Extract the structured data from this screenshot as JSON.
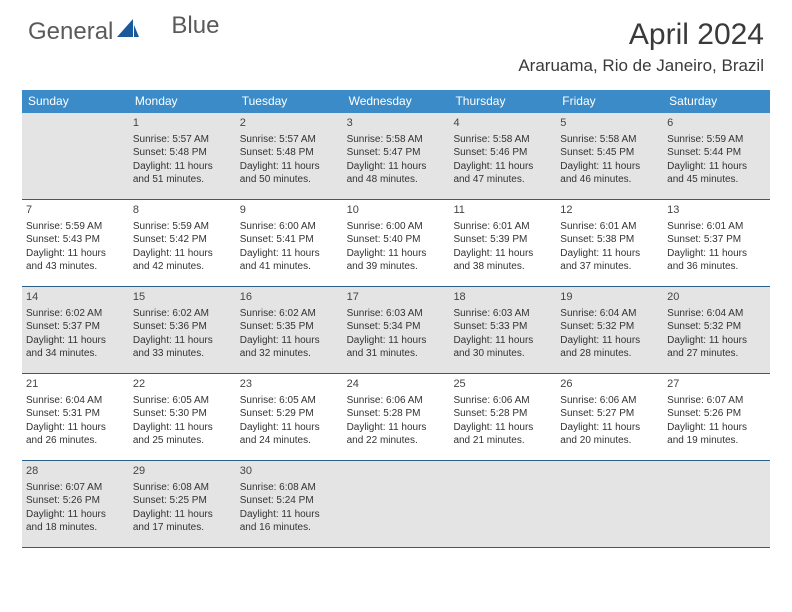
{
  "brand": {
    "part1": "General",
    "part2": "Blue"
  },
  "colors": {
    "header_bg": "#3b8bc8",
    "header_text": "#ffffff",
    "row_border": "#2b5f8a",
    "shaded_bg": "#e4e4e4",
    "text": "#333333",
    "logo_gray": "#5a5a5a",
    "logo_blue": "#1b5a9a"
  },
  "title": "April 2024",
  "location": "Araruama, Rio de Janeiro, Brazil",
  "day_names": [
    "Sunday",
    "Monday",
    "Tuesday",
    "Wednesday",
    "Thursday",
    "Friday",
    "Saturday"
  ],
  "weeks": [
    {
      "shaded": true,
      "cells": [
        {
          "num": "",
          "lines": []
        },
        {
          "num": "1",
          "lines": [
            "Sunrise: 5:57 AM",
            "Sunset: 5:48 PM",
            "Daylight: 11 hours",
            "and 51 minutes."
          ]
        },
        {
          "num": "2",
          "lines": [
            "Sunrise: 5:57 AM",
            "Sunset: 5:48 PM",
            "Daylight: 11 hours",
            "and 50 minutes."
          ]
        },
        {
          "num": "3",
          "lines": [
            "Sunrise: 5:58 AM",
            "Sunset: 5:47 PM",
            "Daylight: 11 hours",
            "and 48 minutes."
          ]
        },
        {
          "num": "4",
          "lines": [
            "Sunrise: 5:58 AM",
            "Sunset: 5:46 PM",
            "Daylight: 11 hours",
            "and 47 minutes."
          ]
        },
        {
          "num": "5",
          "lines": [
            "Sunrise: 5:58 AM",
            "Sunset: 5:45 PM",
            "Daylight: 11 hours",
            "and 46 minutes."
          ]
        },
        {
          "num": "6",
          "lines": [
            "Sunrise: 5:59 AM",
            "Sunset: 5:44 PM",
            "Daylight: 11 hours",
            "and 45 minutes."
          ]
        }
      ]
    },
    {
      "shaded": false,
      "cells": [
        {
          "num": "7",
          "lines": [
            "Sunrise: 5:59 AM",
            "Sunset: 5:43 PM",
            "Daylight: 11 hours",
            "and 43 minutes."
          ]
        },
        {
          "num": "8",
          "lines": [
            "Sunrise: 5:59 AM",
            "Sunset: 5:42 PM",
            "Daylight: 11 hours",
            "and 42 minutes."
          ]
        },
        {
          "num": "9",
          "lines": [
            "Sunrise: 6:00 AM",
            "Sunset: 5:41 PM",
            "Daylight: 11 hours",
            "and 41 minutes."
          ]
        },
        {
          "num": "10",
          "lines": [
            "Sunrise: 6:00 AM",
            "Sunset: 5:40 PM",
            "Daylight: 11 hours",
            "and 39 minutes."
          ]
        },
        {
          "num": "11",
          "lines": [
            "Sunrise: 6:01 AM",
            "Sunset: 5:39 PM",
            "Daylight: 11 hours",
            "and 38 minutes."
          ]
        },
        {
          "num": "12",
          "lines": [
            "Sunrise: 6:01 AM",
            "Sunset: 5:38 PM",
            "Daylight: 11 hours",
            "and 37 minutes."
          ]
        },
        {
          "num": "13",
          "lines": [
            "Sunrise: 6:01 AM",
            "Sunset: 5:37 PM",
            "Daylight: 11 hours",
            "and 36 minutes."
          ]
        }
      ]
    },
    {
      "shaded": true,
      "cells": [
        {
          "num": "14",
          "lines": [
            "Sunrise: 6:02 AM",
            "Sunset: 5:37 PM",
            "Daylight: 11 hours",
            "and 34 minutes."
          ]
        },
        {
          "num": "15",
          "lines": [
            "Sunrise: 6:02 AM",
            "Sunset: 5:36 PM",
            "Daylight: 11 hours",
            "and 33 minutes."
          ]
        },
        {
          "num": "16",
          "lines": [
            "Sunrise: 6:02 AM",
            "Sunset: 5:35 PM",
            "Daylight: 11 hours",
            "and 32 minutes."
          ]
        },
        {
          "num": "17",
          "lines": [
            "Sunrise: 6:03 AM",
            "Sunset: 5:34 PM",
            "Daylight: 11 hours",
            "and 31 minutes."
          ]
        },
        {
          "num": "18",
          "lines": [
            "Sunrise: 6:03 AM",
            "Sunset: 5:33 PM",
            "Daylight: 11 hours",
            "and 30 minutes."
          ]
        },
        {
          "num": "19",
          "lines": [
            "Sunrise: 6:04 AM",
            "Sunset: 5:32 PM",
            "Daylight: 11 hours",
            "and 28 minutes."
          ]
        },
        {
          "num": "20",
          "lines": [
            "Sunrise: 6:04 AM",
            "Sunset: 5:32 PM",
            "Daylight: 11 hours",
            "and 27 minutes."
          ]
        }
      ]
    },
    {
      "shaded": false,
      "cells": [
        {
          "num": "21",
          "lines": [
            "Sunrise: 6:04 AM",
            "Sunset: 5:31 PM",
            "Daylight: 11 hours",
            "and 26 minutes."
          ]
        },
        {
          "num": "22",
          "lines": [
            "Sunrise: 6:05 AM",
            "Sunset: 5:30 PM",
            "Daylight: 11 hours",
            "and 25 minutes."
          ]
        },
        {
          "num": "23",
          "lines": [
            "Sunrise: 6:05 AM",
            "Sunset: 5:29 PM",
            "Daylight: 11 hours",
            "and 24 minutes."
          ]
        },
        {
          "num": "24",
          "lines": [
            "Sunrise: 6:06 AM",
            "Sunset: 5:28 PM",
            "Daylight: 11 hours",
            "and 22 minutes."
          ]
        },
        {
          "num": "25",
          "lines": [
            "Sunrise: 6:06 AM",
            "Sunset: 5:28 PM",
            "Daylight: 11 hours",
            "and 21 minutes."
          ]
        },
        {
          "num": "26",
          "lines": [
            "Sunrise: 6:06 AM",
            "Sunset: 5:27 PM",
            "Daylight: 11 hours",
            "and 20 minutes."
          ]
        },
        {
          "num": "27",
          "lines": [
            "Sunrise: 6:07 AM",
            "Sunset: 5:26 PM",
            "Daylight: 11 hours",
            "and 19 minutes."
          ]
        }
      ]
    },
    {
      "shaded": true,
      "cells": [
        {
          "num": "28",
          "lines": [
            "Sunrise: 6:07 AM",
            "Sunset: 5:26 PM",
            "Daylight: 11 hours",
            "and 18 minutes."
          ]
        },
        {
          "num": "29",
          "lines": [
            "Sunrise: 6:08 AM",
            "Sunset: 5:25 PM",
            "Daylight: 11 hours",
            "and 17 minutes."
          ]
        },
        {
          "num": "30",
          "lines": [
            "Sunrise: 6:08 AM",
            "Sunset: 5:24 PM",
            "Daylight: 11 hours",
            "and 16 minutes."
          ]
        },
        {
          "num": "",
          "lines": []
        },
        {
          "num": "",
          "lines": []
        },
        {
          "num": "",
          "lines": []
        },
        {
          "num": "",
          "lines": []
        }
      ]
    }
  ]
}
